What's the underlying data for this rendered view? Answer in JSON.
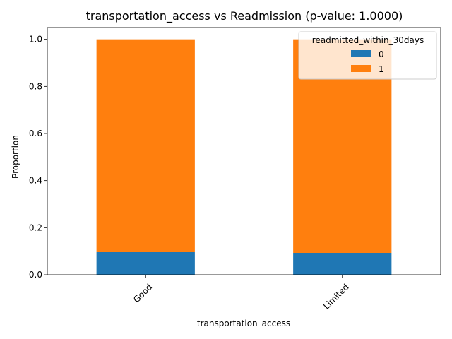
{
  "chart_data": {
    "type": "bar",
    "stacked": true,
    "title": "transportation_access vs Readmission (p-value: 1.0000)",
    "xlabel": "transportation_access",
    "ylabel": "Proportion",
    "categories": [
      "Good",
      "Limited"
    ],
    "series": [
      {
        "name": "0",
        "color": "#1f77b4",
        "values": [
          0.096,
          0.093
        ]
      },
      {
        "name": "1",
        "color": "#ff7f0e",
        "values": [
          0.904,
          0.907
        ]
      }
    ],
    "ylim": [
      0,
      1.05
    ],
    "yticks": [
      "0.0",
      "0.2",
      "0.4",
      "0.6",
      "0.8",
      "1.0"
    ],
    "ytick_values": [
      0.0,
      0.2,
      0.4,
      0.6,
      0.8,
      1.0
    ],
    "legend": {
      "title": "readmitted_within_30days",
      "placement": "top-right"
    },
    "grid": false
  }
}
